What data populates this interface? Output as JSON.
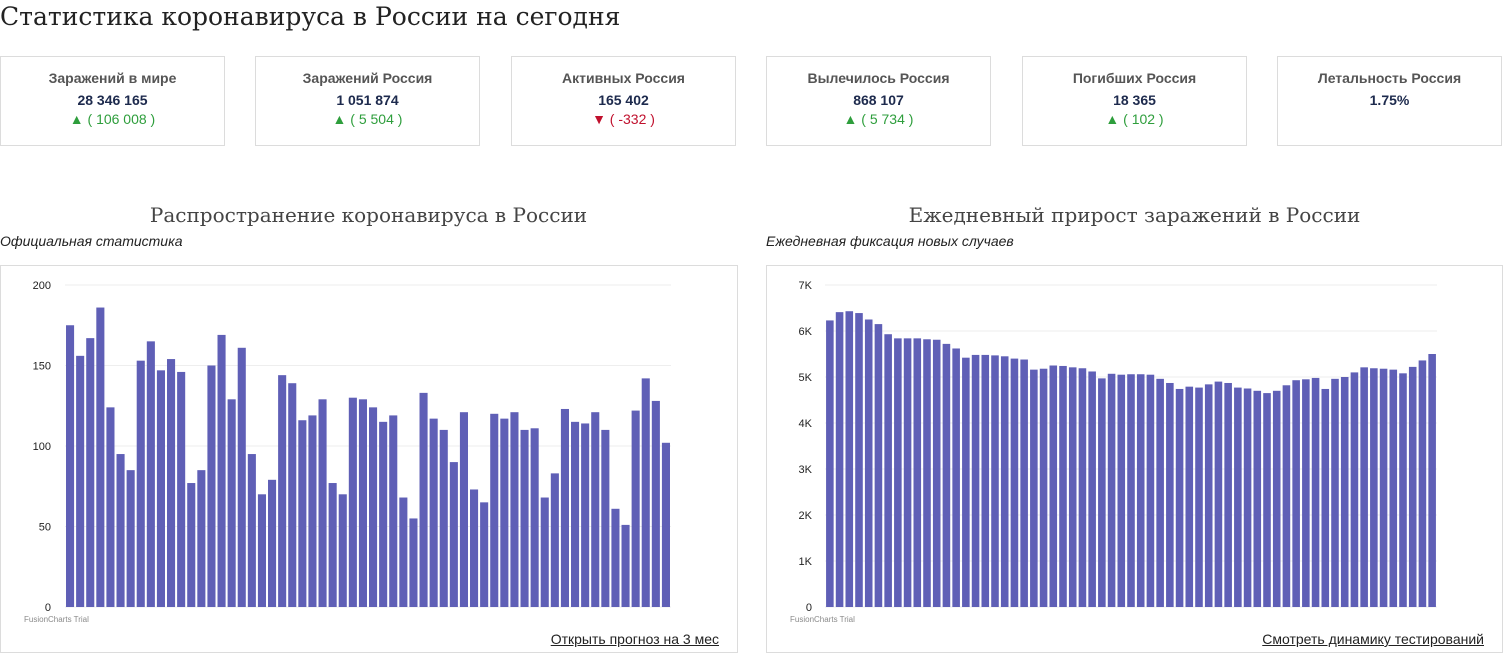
{
  "page": {
    "title": "Статистика коронавируса в России на сегодня"
  },
  "stats": [
    {
      "label": "Заражений в мире",
      "value": "28 346 165",
      "delta": "▲ ( 106 008 )",
      "trend": "up"
    },
    {
      "label": "Заражений Россия",
      "value": "1 051 874",
      "delta": "▲ ( 5 504 )",
      "trend": "up"
    },
    {
      "label": "Активных Россия",
      "value": "165 402",
      "delta": "▼ ( -332 )",
      "trend": "down"
    },
    {
      "label": "Вылечилось Россия",
      "value": "868 107",
      "delta": "▲ ( 5 734 )",
      "trend": "up"
    },
    {
      "label": "Погибших Россия",
      "value": "18 365",
      "delta": "▲ ( 102 )",
      "trend": "up"
    },
    {
      "label": "Летальность Россия",
      "value": "1.75%",
      "delta": "",
      "trend": "none"
    }
  ],
  "colors": {
    "bar": "#5f5fb6",
    "up": "#2e9e3c",
    "down": "#c0102d",
    "grid": "#eeeeee",
    "axis_text": "#222222"
  },
  "charts": {
    "left": {
      "title": "Распространение коронавируса в России",
      "subtitle": "Официальная статистика",
      "watermark": "FusionCharts Trial",
      "link": "Открыть прогноз на 3 мес"
    },
    "right": {
      "title": "Ежедневный прирост заражений в России",
      "subtitle": "Ежедневная фиксация новых случаев",
      "watermark": "FusionCharts Trial",
      "link": "Смотреть динамику тестирований"
    }
  },
  "chart_data": [
    {
      "type": "bar",
      "title": "Распространение коронавируса в России",
      "subtitle": "Официальная статистика",
      "ylim": [
        0,
        200
      ],
      "yticks": [
        0,
        50,
        100,
        150,
        200
      ],
      "ytick_labels": [
        "0",
        "50",
        "100",
        "150",
        "200"
      ],
      "grid": true,
      "legend": "none",
      "values": [
        175,
        156,
        167,
        186,
        124,
        95,
        85,
        153,
        165,
        147,
        154,
        146,
        77,
        85,
        150,
        169,
        129,
        161,
        95,
        70,
        79,
        144,
        139,
        116,
        119,
        129,
        77,
        70,
        130,
        129,
        124,
        115,
        119,
        68,
        55,
        133,
        117,
        110,
        90,
        121,
        73,
        65,
        120,
        117,
        121,
        110,
        111,
        68,
        83,
        123,
        115,
        114,
        121,
        110,
        61,
        51,
        122,
        142,
        128,
        102
      ]
    },
    {
      "type": "bar",
      "title": "Ежедневный прирост заражений в России",
      "subtitle": "Ежедневная фиксация новых случаев",
      "ylim": [
        0,
        7000
      ],
      "yticks": [
        0,
        1000,
        2000,
        3000,
        4000,
        5000,
        6000,
        7000
      ],
      "ytick_labels": [
        "0",
        "1K",
        "2K",
        "3K",
        "4K",
        "5K",
        "6K",
        "7K"
      ],
      "grid": true,
      "legend": "none",
      "values": [
        6230,
        6410,
        6430,
        6390,
        6250,
        6150,
        5930,
        5840,
        5840,
        5840,
        5820,
        5810,
        5720,
        5620,
        5420,
        5480,
        5480,
        5470,
        5450,
        5400,
        5380,
        5160,
        5180,
        5250,
        5240,
        5210,
        5190,
        5120,
        4970,
        5070,
        5050,
        5060,
        5060,
        5050,
        4960,
        4870,
        4740,
        4790,
        4770,
        4840,
        4900,
        4870,
        4770,
        4750,
        4700,
        4650,
        4700,
        4820,
        4930,
        4950,
        4980,
        4740,
        4960,
        5000,
        5100,
        5210,
        5190,
        5180,
        5160,
        5080,
        5220,
        5360,
        5500
      ]
    }
  ]
}
